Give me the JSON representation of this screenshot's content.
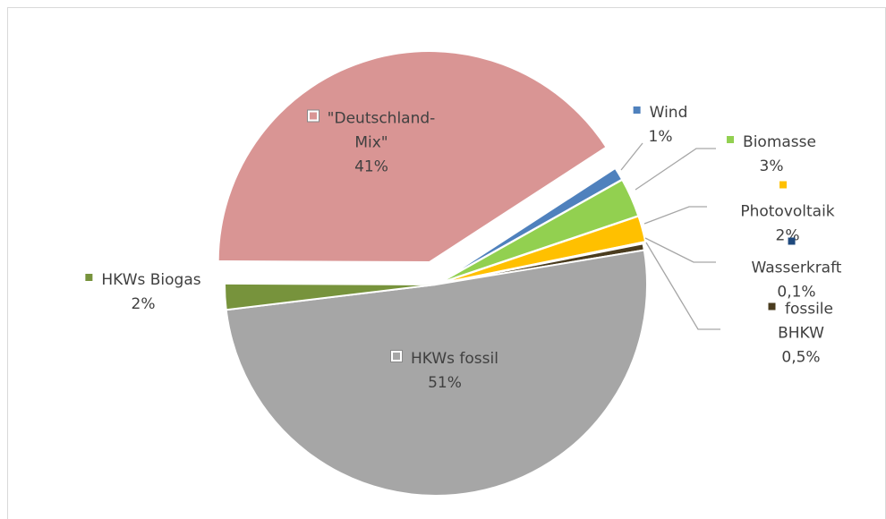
{
  "chart_data": {
    "type": "pie",
    "categories": [
      "Wind",
      "Biomasse",
      "Photovoltaik",
      "Wasserkraft",
      "fossile BHKW",
      "HKWs fossil",
      "HKWs Biogas",
      "\"Deutschland-Mix\""
    ],
    "values": [
      1,
      3,
      2,
      0.1,
      0.5,
      51,
      2,
      41
    ],
    "value_labels": [
      "1%",
      "3%",
      "2%",
      "0,1%",
      "0,5%",
      "51%",
      "2%",
      "41%"
    ],
    "colors": [
      "#4f81bd",
      "#92d050",
      "#ffc000",
      "#1f497d",
      "#4a3c1f",
      "#a6a6a6",
      "#77933c",
      "#d99594"
    ]
  }
}
